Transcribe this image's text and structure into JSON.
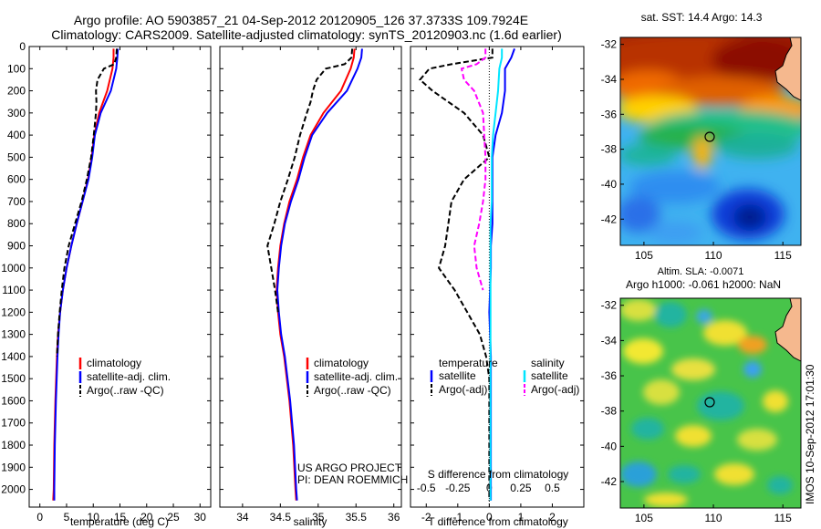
{
  "header": {
    "line1": "Argo profile: AO 5903857_21 04-Sep-2012 20120905_126 37.3733S 109.7924E",
    "line2": "Climatology: CARS2009. Satellite-adjusted climatology: synTS_20120903.nc (1.6d earlier)"
  },
  "timestamp": "IMOS 10-Sep-2012 17:01:30",
  "colors": {
    "climatology": "#ff0000",
    "satellite": "#0000ff",
    "argo": "#000000",
    "sal_satellite": "#00e5ff",
    "sal_argo": "#ff00ff"
  },
  "depth_ticks": [
    0,
    100,
    200,
    300,
    400,
    500,
    600,
    700,
    800,
    900,
    1000,
    1100,
    1200,
    1300,
    1400,
    1500,
    1600,
    1700,
    1800,
    1900,
    2000
  ],
  "chart_data": [
    {
      "type": "line",
      "panel": "temperature",
      "xlabel": "temperature (deg C)",
      "xlim": [
        -2,
        32
      ],
      "ylim": [
        2080,
        0
      ],
      "xticks": [
        0,
        5,
        10,
        15,
        20,
        25,
        30
      ],
      "legend": [
        "climatology",
        "satellite-adj. clim.",
        "Argo(..raw -QC)"
      ],
      "series": [
        {
          "name": "climatology",
          "depth": [
            10,
            50,
            100,
            200,
            300,
            400,
            500,
            600,
            700,
            800,
            900,
            1000,
            1100,
            1200,
            1300,
            1400,
            1600,
            1800,
            2000,
            2050
          ],
          "values": [
            13.8,
            13.8,
            13.6,
            12.6,
            11.1,
            10.2,
            9.7,
            9.0,
            8.0,
            6.9,
            5.9,
            5.0,
            4.3,
            3.8,
            3.4,
            3.2,
            2.9,
            2.7,
            2.6,
            2.5
          ]
        },
        {
          "name": "satellite-adj. clim.",
          "depth": [
            10,
            50,
            100,
            200,
            300,
            400,
            500,
            600,
            700,
            800,
            900,
            1000,
            1100,
            1200,
            1300,
            1400,
            1600,
            1800,
            2000,
            2050
          ],
          "values": [
            14.6,
            14.5,
            14.3,
            13.3,
            11.4,
            10.3,
            9.8,
            9.1,
            8.0,
            6.9,
            5.9,
            5.0,
            4.3,
            3.8,
            3.5,
            3.3,
            3.0,
            2.8,
            2.7,
            2.7
          ]
        },
        {
          "name": "Argo(..raw -QC)",
          "depth": [
            10,
            50,
            80,
            100,
            150,
            200,
            250,
            300,
            400,
            500,
            600,
            700,
            800,
            900,
            1000,
            1100,
            1200,
            1300,
            1400
          ],
          "values": [
            14.4,
            14.3,
            13.9,
            12.0,
            10.8,
            10.5,
            10.6,
            10.5,
            10.1,
            9.6,
            8.8,
            7.8,
            6.6,
            5.4,
            4.6,
            4.1,
            3.7,
            3.4,
            3.2
          ]
        }
      ]
    },
    {
      "type": "line",
      "panel": "salinity",
      "xlabel": "salinity",
      "xlim": [
        33.7,
        36.1
      ],
      "ylim": [
        2080,
        0
      ],
      "xticks": [
        34,
        34.5,
        35,
        35.5,
        36
      ],
      "legend": [
        "climatology",
        "satellite-adj. clim.",
        "Argo(..raw -QC)"
      ],
      "annotations": [
        "US ARGO PROJECT",
        "PI: DEAN ROEMMICH"
      ],
      "series": [
        {
          "name": "climatology",
          "depth": [
            10,
            50,
            100,
            200,
            300,
            400,
            500,
            600,
            700,
            800,
            900,
            1000,
            1100,
            1200,
            1300,
            1400,
            1600,
            1800,
            2000,
            2050
          ],
          "values": [
            35.48,
            35.47,
            35.43,
            35.3,
            35.07,
            34.9,
            34.8,
            34.72,
            34.62,
            34.55,
            34.5,
            34.47,
            34.45,
            34.47,
            34.5,
            34.55,
            34.62,
            34.67,
            34.7,
            34.71
          ]
        },
        {
          "name": "satellite-adj. clim.",
          "depth": [
            10,
            50,
            100,
            200,
            300,
            400,
            500,
            600,
            700,
            800,
            900,
            1000,
            1100,
            1200,
            1300,
            1400,
            1600,
            1800,
            2000,
            2050
          ],
          "values": [
            35.58,
            35.57,
            35.52,
            35.38,
            35.12,
            34.92,
            34.82,
            34.74,
            34.64,
            34.56,
            34.51,
            34.48,
            34.46,
            34.48,
            34.51,
            34.56,
            34.63,
            34.68,
            34.71,
            34.72
          ]
        },
        {
          "name": "Argo(..raw -QC)",
          "depth": [
            10,
            50,
            80,
            100,
            150,
            200,
            250,
            300,
            400,
            500,
            600,
            700,
            800,
            900,
            1000,
            1100,
            1200
          ],
          "values": [
            35.45,
            35.44,
            35.35,
            35.1,
            34.98,
            34.93,
            34.9,
            34.85,
            34.76,
            34.69,
            34.6,
            34.5,
            34.42,
            34.33,
            34.38,
            34.43,
            34.47
          ]
        }
      ]
    },
    {
      "type": "line",
      "panel": "difference",
      "xlabel": "T difference from climatology",
      "x2label": "S difference from climatology",
      "xlim": [
        -2.5,
        3
      ],
      "ylim": [
        2080,
        0
      ],
      "xticks": [
        -2,
        -1,
        0,
        1,
        2
      ],
      "s_ticks": [
        -0.5,
        -0.25,
        0,
        0.25,
        0.5
      ],
      "legend_temperature": {
        "title": "temperature",
        "items": [
          "satellite",
          "Argo(-adj)"
        ]
      },
      "legend_salinity": {
        "title": "salinity",
        "items": [
          "satellite",
          "Argo(-adj)"
        ]
      },
      "series": [
        {
          "name": "T satellite",
          "depth": [
            10,
            50,
            100,
            200,
            300,
            400,
            500,
            600,
            700,
            800,
            900,
            1000,
            1200,
            1400,
            1600,
            1800,
            2000,
            2050
          ],
          "values": [
            0.8,
            0.7,
            0.5,
            0.5,
            0.4,
            0.2,
            0.1,
            0.1,
            0.1,
            0.1,
            0.05,
            0.05,
            0.0,
            0.05,
            0.05,
            0.05,
            0.05,
            0.05
          ]
        },
        {
          "name": "T Argo(-adj)",
          "depth": [
            10,
            50,
            80,
            100,
            150,
            200,
            300,
            400,
            500,
            600,
            700,
            800,
            900,
            1000,
            1100,
            1200,
            1300,
            1400,
            1500,
            1600,
            1800,
            2000,
            2050
          ],
          "values": [
            0.1,
            0.1,
            -1.2,
            -1.9,
            -2.2,
            -1.8,
            -0.8,
            -0.2,
            0.0,
            -0.8,
            -1.2,
            -1.3,
            -1.4,
            -1.6,
            -1.1,
            -0.7,
            -0.3,
            -0.1,
            0.0,
            0.0,
            0.0,
            0.0,
            0.0
          ]
        },
        {
          "name": "S satellite",
          "depth": [
            10,
            50,
            100,
            200,
            300,
            400,
            500,
            600,
            700,
            800,
            1000,
            1200,
            1400,
            1600,
            1800,
            2000,
            2050
          ],
          "values": [
            0.1,
            0.1,
            0.08,
            0.07,
            0.05,
            0.03,
            0.02,
            0.02,
            0.02,
            0.01,
            0.01,
            0.01,
            0.01,
            0.01,
            0.01,
            0.01,
            0.01
          ]
        },
        {
          "name": "S Argo(-adj)",
          "depth": [
            10,
            50,
            80,
            100,
            150,
            200,
            300,
            400,
            500,
            600,
            700,
            800,
            900,
            1000,
            1100
          ],
          "values": [
            -0.03,
            -0.03,
            -0.1,
            -0.22,
            -0.2,
            -0.12,
            -0.05,
            -0.04,
            -0.03,
            -0.03,
            -0.05,
            -0.08,
            -0.12,
            -0.1,
            -0.05
          ]
        }
      ]
    },
    {
      "type": "heatmap",
      "panel": "sst_map",
      "title": "sat. SST: 14.4 Argo: 14.3",
      "xticks": [
        105,
        110,
        115
      ],
      "yticks": [
        -32,
        -34,
        -36,
        -38,
        -40,
        -42
      ],
      "xlim": [
        103.3,
        116.3
      ],
      "ylim": [
        -43.5,
        -31.6
      ],
      "marker": {
        "lon": 109.79,
        "lat": -37.37
      }
    },
    {
      "type": "heatmap",
      "panel": "sla_map",
      "title_line1": "Altim. SLA: -0.0071",
      "title_line2": "Argo h1000: -0.061 h2000: NaN",
      "xticks": [
        105,
        110,
        115
      ],
      "yticks": [
        -32,
        -34,
        -36,
        -38,
        -40,
        -42
      ],
      "xlim": [
        103.3,
        116.3
      ],
      "ylim": [
        -43.5,
        -31.6
      ],
      "marker": {
        "lon": 109.79,
        "lat": -37.37
      }
    }
  ]
}
